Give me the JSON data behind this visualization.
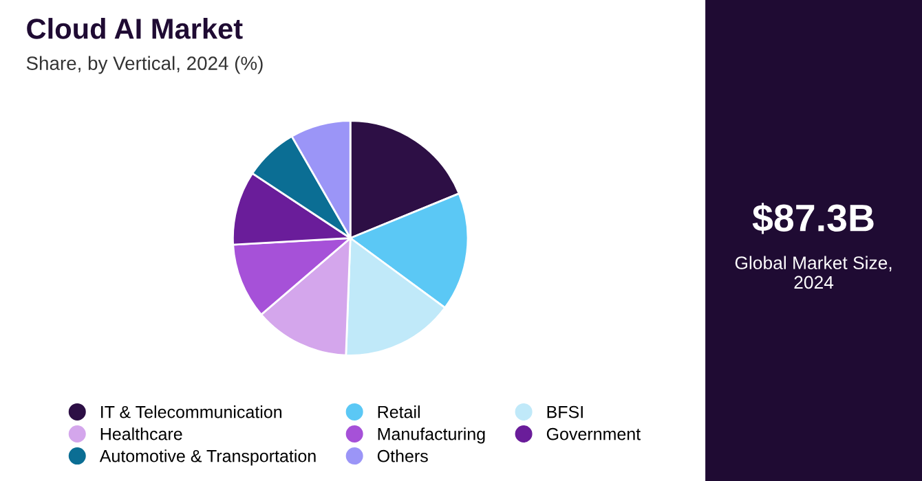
{
  "chart_data": [
    {
      "type": "pie",
      "title": "Cloud AI Market",
      "subtitle": "Share, by Vertical, 2024 (%)",
      "categories": [
        "IT & Telecommunication",
        "Retail",
        "BFSI",
        "Healthcare",
        "Manufacturing",
        "Government",
        "Automotive & Transportation",
        "Others"
      ],
      "values": [
        18.8,
        16.3,
        15.5,
        13.1,
        10.4,
        10.2,
        7.4,
        8.3
      ],
      "colors": [
        "#2d0f45",
        "#5bc8f5",
        "#c0e9f9",
        "#d4a6ec",
        "#a651d8",
        "#6a1d9a",
        "#0b6e94",
        "#9b95f7"
      ],
      "legend": "bottom"
    },
    {
      "type": "other",
      "title": "$87.3B",
      "subtitle": "Global Market Size,\n2024"
    }
  ]
}
